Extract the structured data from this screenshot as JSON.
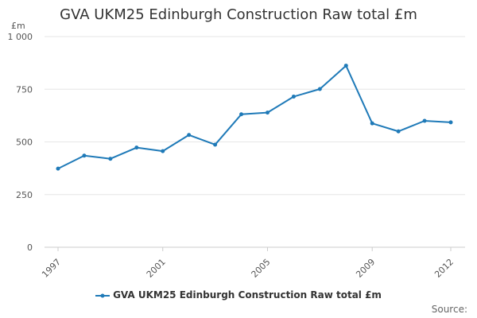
{
  "title": "GVA UKM25 Edinburgh Construction Raw total £m",
  "source_label": "Source:",
  "chart_data": {
    "type": "line",
    "title": "GVA UKM25 Edinburgh Construction Raw total £m",
    "ylabel": "£m",
    "xlabel": "",
    "ylim": [
      0,
      1000
    ],
    "yticks": [
      0,
      250,
      500,
      750,
      1000
    ],
    "ytick_labels": [
      "0",
      "250",
      "500",
      "750",
      "1 000"
    ],
    "x": [
      1997,
      1998,
      1999,
      2000,
      2001,
      2002,
      2003,
      2004,
      2005,
      2006,
      2007,
      2008,
      2009,
      2010,
      2011,
      2012
    ],
    "xtick_labels": [
      "1997",
      "2001",
      "2005",
      "2009",
      "2012"
    ],
    "series": [
      {
        "name": "GVA UKM25 Edinburgh Construction Raw total £m",
        "color": "#1f7ab8",
        "values": [
          373,
          435,
          420,
          473,
          456,
          533,
          487,
          631,
          639,
          715,
          751,
          862,
          588,
          550,
          600,
          593
        ]
      }
    ],
    "grid": "horizontal",
    "legend_position": "bottom-center"
  }
}
